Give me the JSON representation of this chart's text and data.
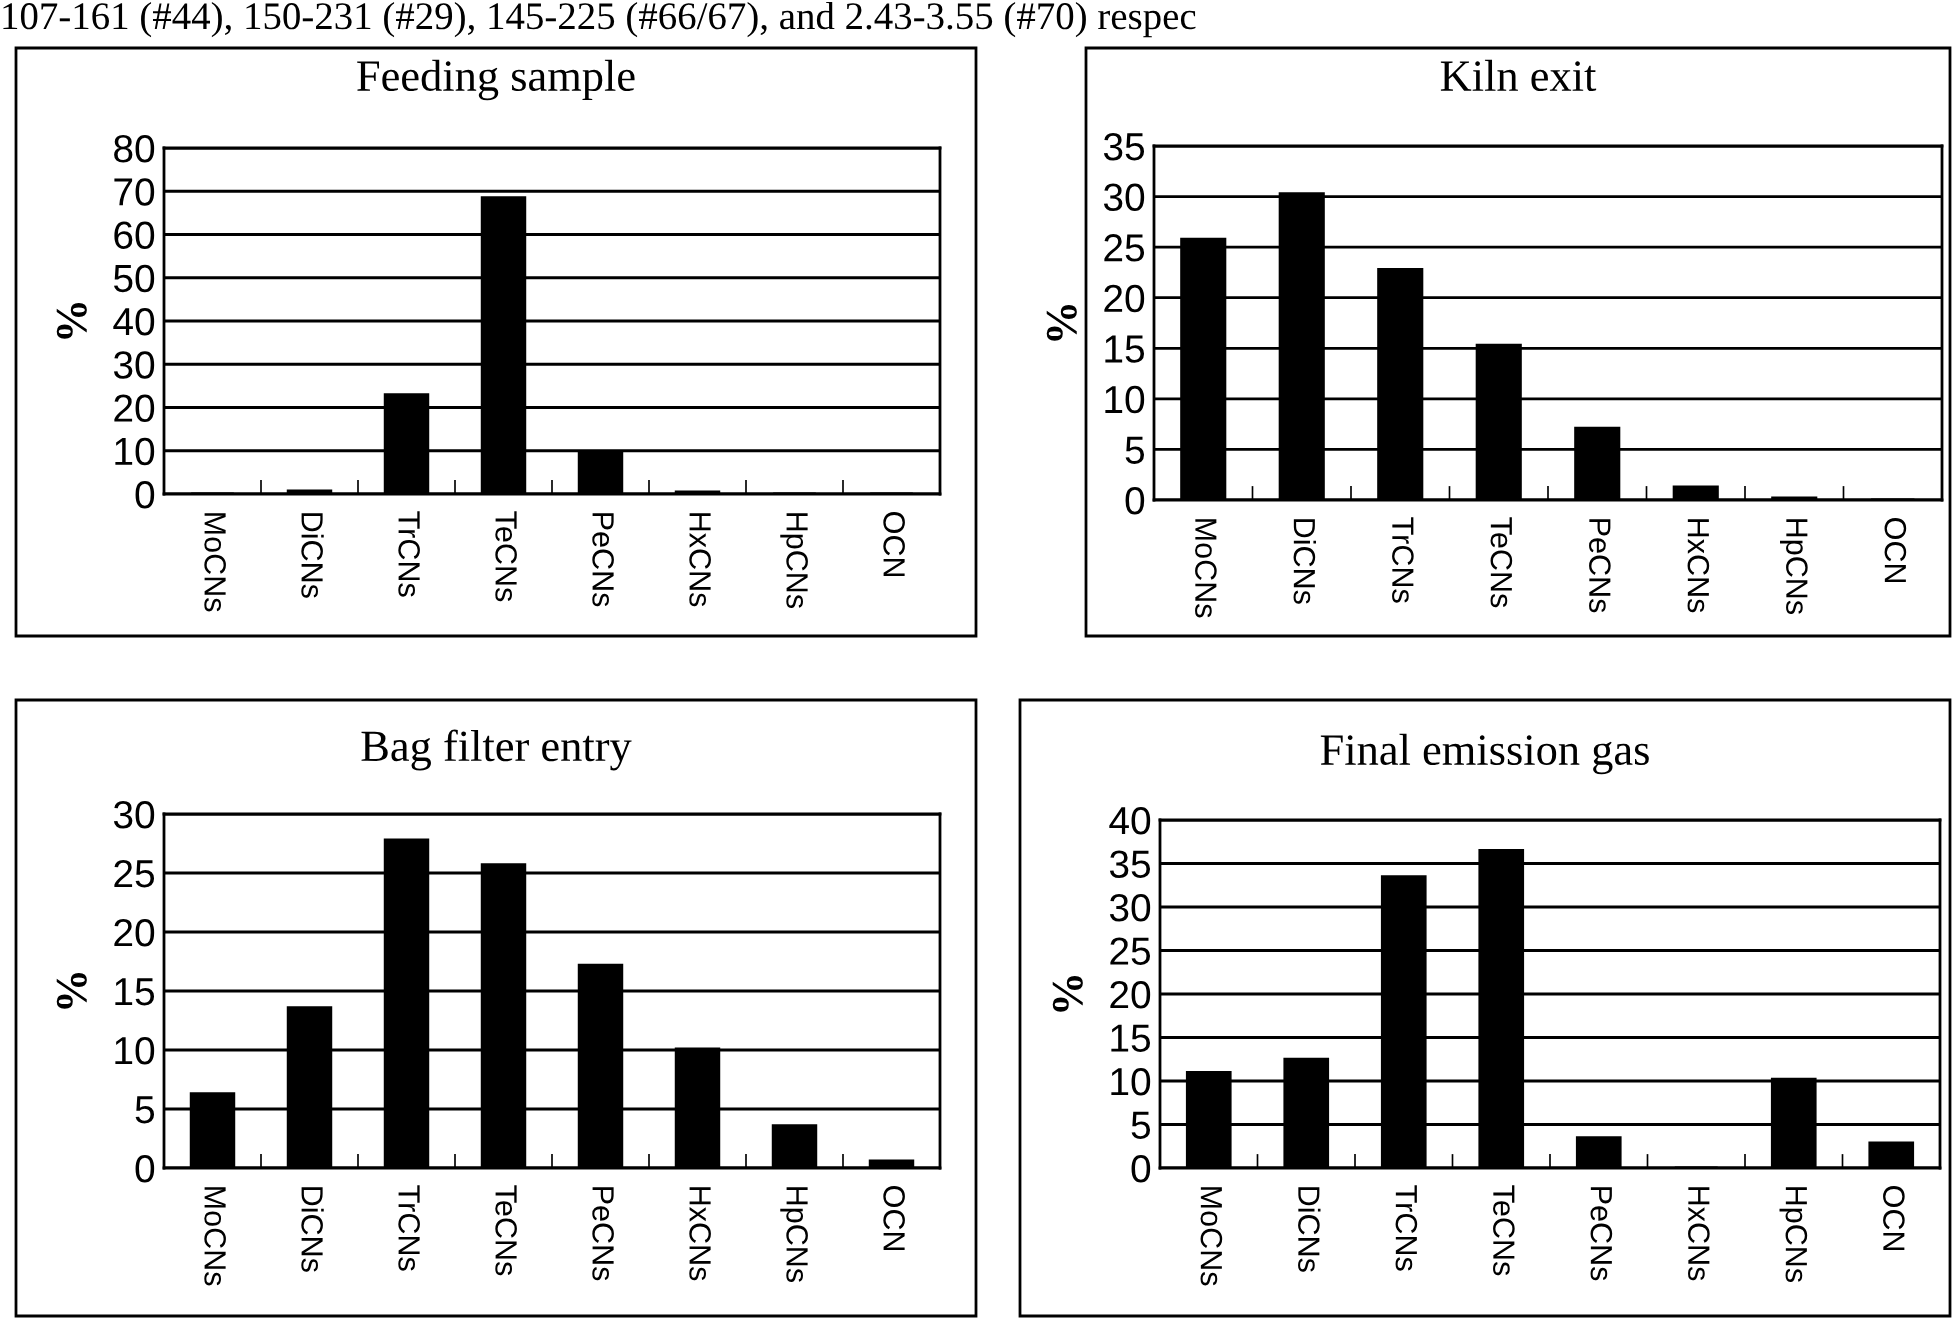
{
  "chart_data": [
    {
      "type": "bar",
      "title": "Feeding sample",
      "ylabel": "%",
      "categories": [
        "MoCNs",
        "DiCNs",
        "TrCNs",
        "TeCNs",
        "PeCNs",
        "HxCNs",
        "HpCNs",
        "OCN"
      ],
      "values": [
        0,
        0.7,
        23,
        68.5,
        9.5,
        0.5,
        0,
        0
      ],
      "color": "#000000",
      "ylim": [
        0,
        80
      ],
      "yticks": [
        0,
        10,
        20,
        30,
        40,
        50,
        60,
        70,
        80
      ],
      "grid": "y",
      "annotations": [
        "107-161 (#44), 150-231 (#29), 145-225 (#66/67), and 2.43-3.55 (#70) respec"
      ]
    },
    {
      "type": "bar",
      "title": "Kiln exit",
      "ylabel": "%",
      "categories": [
        "MoCNs",
        "DiCNs",
        "TrCNs",
        "TeCNs",
        "PeCNs",
        "HxCNs",
        "HpCNs",
        "OCN"
      ],
      "values": [
        25.8,
        30.3,
        22.8,
        15.3,
        7.1,
        1.3,
        0.2,
        0
      ],
      "color": "#000000",
      "ylim": [
        0,
        35
      ],
      "yticks": [
        0,
        5,
        10,
        15,
        20,
        25,
        30,
        35
      ],
      "grid": "y"
    },
    {
      "type": "bar",
      "title": "Bag filter entry",
      "ylabel": "%",
      "categories": [
        "MoCNs",
        "DiCNs",
        "TrCNs",
        "TeCNs",
        "PeCNs",
        "HxCNs",
        "HpCNs",
        "OCN"
      ],
      "values": [
        6.3,
        13.6,
        27.8,
        25.7,
        17.2,
        10.1,
        3.6,
        0.6
      ],
      "color": "#000000",
      "ylim": [
        0,
        30
      ],
      "yticks": [
        0,
        5,
        10,
        15,
        20,
        25,
        30
      ],
      "grid": "y"
    },
    {
      "type": "bar",
      "title": "Final emission gas",
      "ylabel": "%",
      "categories": [
        "MoCNs",
        "DiCNs",
        "TrCNs",
        "TeCNs",
        "PeCNs",
        "HxCNs",
        "HpCNs",
        "OCN"
      ],
      "values": [
        11,
        12.5,
        33.5,
        36.5,
        3.5,
        0,
        10.2,
        2.9
      ],
      "color": "#000000",
      "ylim": [
        0,
        40
      ],
      "yticks": [
        0,
        5,
        10,
        15,
        20,
        25,
        30,
        35,
        40
      ],
      "grid": "y"
    }
  ]
}
